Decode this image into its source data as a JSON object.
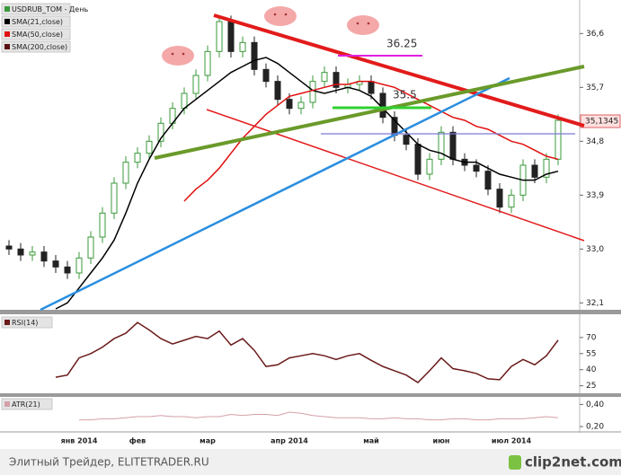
{
  "chart_data": [
    {
      "type": "candlestick",
      "name": "USDRUB_TOM - День",
      "categories": [
        null,
        null,
        null,
        null,
        null,
        null,
        "янв 2014",
        null,
        null,
        null,
        null,
        "фев",
        null,
        null,
        null,
        null,
        null,
        "мар",
        null,
        null,
        null,
        null,
        null,
        null,
        "апр 2014",
        null,
        null,
        null,
        null,
        null,
        null,
        "май",
        null,
        null,
        null,
        null,
        null,
        "июн",
        null,
        null,
        null,
        null,
        null,
        "июл 2014",
        null,
        null,
        null,
        null
      ],
      "open": [
        33.05,
        33.0,
        32.9,
        32.95,
        32.8,
        32.7,
        32.6,
        32.85,
        33.2,
        33.6,
        34.1,
        34.45,
        34.6,
        34.8,
        35.1,
        35.35,
        35.6,
        35.9,
        36.3,
        36.8,
        36.3,
        36.45,
        36.0,
        35.8,
        35.5,
        35.35,
        35.45,
        35.8,
        35.95,
        35.7,
        35.75,
        35.8,
        35.6,
        35.2,
        34.9,
        34.75,
        34.25,
        34.5,
        34.95,
        34.5,
        34.4,
        34.3,
        34.0,
        33.7,
        33.9,
        34.4,
        34.2,
        34.5
      ],
      "high": [
        33.15,
        33.1,
        33.05,
        33.05,
        32.9,
        32.8,
        32.95,
        33.3,
        33.7,
        34.2,
        34.55,
        34.7,
        34.9,
        35.2,
        35.45,
        35.7,
        36.0,
        36.4,
        36.9,
        36.9,
        36.55,
        36.55,
        36.1,
        35.9,
        35.6,
        35.55,
        35.9,
        36.05,
        36.05,
        35.85,
        35.9,
        35.9,
        35.7,
        35.3,
        35.0,
        34.85,
        34.6,
        35.05,
        35.05,
        34.6,
        34.5,
        34.4,
        34.1,
        34.0,
        34.5,
        34.5,
        34.6,
        35.25
      ],
      "low": [
        32.9,
        32.8,
        32.8,
        32.7,
        32.6,
        32.5,
        32.5,
        32.75,
        33.1,
        33.5,
        34.0,
        34.35,
        34.5,
        34.7,
        35.0,
        35.25,
        35.5,
        35.8,
        36.2,
        36.2,
        36.2,
        35.9,
        35.7,
        35.4,
        35.25,
        35.25,
        35.35,
        35.7,
        35.6,
        35.6,
        35.65,
        35.5,
        35.1,
        34.8,
        34.65,
        34.15,
        34.15,
        34.4,
        34.4,
        34.3,
        34.2,
        33.9,
        33.6,
        33.6,
        33.8,
        34.1,
        34.1,
        34.4
      ],
      "close": [
        33.0,
        32.9,
        32.95,
        32.8,
        32.7,
        32.6,
        32.85,
        33.2,
        33.6,
        34.1,
        34.45,
        34.6,
        34.8,
        35.1,
        35.35,
        35.6,
        35.9,
        36.3,
        36.8,
        36.3,
        36.45,
        36.0,
        35.8,
        35.5,
        35.35,
        35.45,
        35.8,
        35.95,
        35.7,
        35.75,
        35.8,
        35.6,
        35.2,
        34.9,
        34.75,
        34.25,
        34.5,
        34.95,
        34.5,
        34.4,
        34.3,
        34.0,
        33.7,
        33.9,
        34.4,
        34.2,
        34.5,
        35.15
      ],
      "up_color": "#3a9a3a",
      "down_color": "#222222",
      "series": [
        {
          "name": "SMA(21,close)",
          "color": "#000000",
          "values": [
            null,
            null,
            null,
            null,
            32.0,
            32.1,
            32.35,
            32.6,
            32.85,
            33.15,
            33.6,
            34.1,
            34.5,
            34.85,
            35.1,
            35.35,
            35.5,
            35.65,
            35.8,
            35.95,
            36.05,
            36.15,
            36.2,
            36.1,
            35.95,
            35.8,
            35.65,
            35.6,
            35.65,
            35.7,
            35.65,
            35.55,
            35.35,
            35.15,
            34.95,
            34.75,
            34.65,
            34.6,
            34.5,
            34.45,
            34.45,
            34.35,
            34.25,
            34.2,
            34.15,
            34.15,
            34.25,
            34.3
          ]
        },
        {
          "name": "SMA(50,close)",
          "color": "#e01010",
          "values": [
            null,
            null,
            null,
            null,
            null,
            null,
            null,
            null,
            null,
            null,
            null,
            null,
            null,
            null,
            null,
            33.8,
            34.0,
            34.15,
            34.35,
            34.6,
            34.85,
            35.05,
            35.25,
            35.4,
            35.55,
            35.6,
            35.65,
            35.7,
            35.75,
            35.75,
            35.8,
            35.8,
            35.75,
            35.7,
            35.6,
            35.5,
            35.4,
            35.3,
            35.2,
            35.15,
            35.05,
            35.0,
            34.9,
            34.8,
            34.75,
            34.65,
            34.55,
            34.5
          ]
        },
        {
          "name": "SMA(200,close)",
          "color": "#5a1010"
        }
      ],
      "ylim": [
        32.0,
        37.1
      ],
      "yticks": [
        {
          "value": 36.6,
          "label": "36,6"
        },
        {
          "value": 35.7,
          "label": "35,7"
        },
        {
          "value": 34.8,
          "label": "34,8"
        },
        {
          "value": 33.9,
          "label": "33,9"
        },
        {
          "value": 33.0,
          "label": "33,0"
        },
        {
          "value": 32.1,
          "label": "32,1"
        }
      ],
      "last_price": {
        "value": 35.1345,
        "label": "35,1345"
      },
      "annotations": [
        "36.25",
        "35.5"
      ]
    },
    {
      "type": "line",
      "title": "RSI(14)",
      "color": "#6b1a1a",
      "values": [
        null,
        null,
        null,
        null,
        33,
        35,
        51,
        55,
        61,
        69,
        74,
        84,
        77,
        69,
        64,
        67.5,
        71,
        69,
        76,
        63,
        69,
        58,
        43,
        44.6,
        51,
        53,
        55,
        53,
        49.5,
        53,
        55,
        48.7,
        43,
        39,
        35,
        28,
        39,
        51,
        41,
        39,
        36.5,
        31.5,
        30.7,
        43,
        49.5,
        44.6,
        53,
        67.5
      ],
      "ylim": [
        18,
        90
      ],
      "yticks": [
        70,
        55,
        40,
        25
      ]
    },
    {
      "type": "line",
      "title": "ATR(21)",
      "color": "#d4a0a8",
      "values": [
        null,
        null,
        null,
        null,
        null,
        null,
        0.26,
        0.26,
        0.27,
        0.27,
        0.28,
        0.29,
        0.29,
        0.3,
        0.29,
        0.29,
        0.28,
        0.29,
        0.29,
        0.31,
        0.3,
        0.31,
        0.31,
        0.3,
        0.33,
        0.32,
        0.3,
        0.29,
        0.28,
        0.28,
        0.28,
        0.27,
        0.27,
        0.28,
        0.27,
        0.27,
        0.26,
        0.26,
        0.27,
        0.27,
        0.26,
        0.26,
        0.27,
        0.27,
        0.27,
        0.28,
        0.29,
        0.28
      ],
      "ylim": [
        0.16,
        0.46
      ],
      "yticks": [
        {
          "value": 0.4,
          "label": "0,40"
        },
        {
          "value": 0.2,
          "label": "0,20"
        }
      ]
    }
  ],
  "footer": {
    "watermark": "Элитный Трейдер, ELITETRADER.RU",
    "logo": "clip2net.com"
  }
}
